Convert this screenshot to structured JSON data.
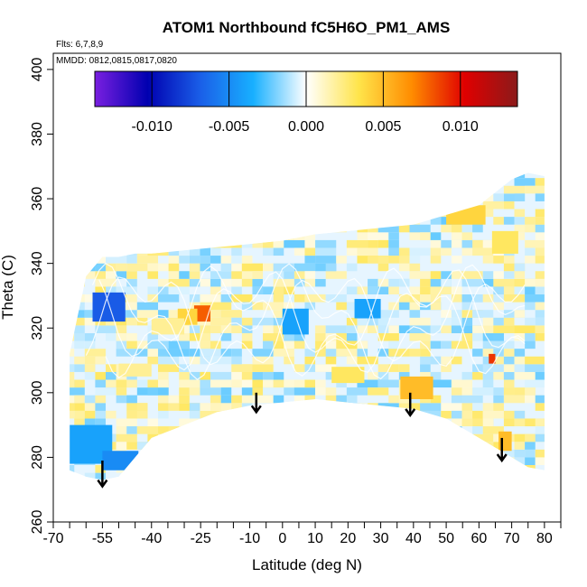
{
  "chart_data": {
    "type": "heatmap",
    "title": "ATOM1 Northbound fC5H6O_PM1_AMS",
    "flights_note": "Flts: 6,7,8,9",
    "dates_note": "MMDD: 0812,0815,0817,0820",
    "xlabel": "Latitude (deg N)",
    "ylabel": "Theta (C)",
    "xlim": [
      -70,
      85
    ],
    "ylim": [
      260,
      405
    ],
    "x_ticks": [
      "-70",
      "-55",
      "-40",
      "-25",
      "-10",
      "0",
      "10",
      "20",
      "30",
      "40",
      "50",
      "60",
      "70",
      "80"
    ],
    "x_tick_values": [
      -70,
      -55,
      -40,
      -25,
      -10,
      0,
      10,
      20,
      30,
      40,
      50,
      60,
      70,
      80
    ],
    "y_ticks": [
      "260",
      "280",
      "300",
      "320",
      "340",
      "360",
      "380",
      "400"
    ],
    "y_tick_values": [
      260,
      280,
      300,
      320,
      340,
      360,
      380,
      400
    ],
    "colorbar": {
      "min": -0.0137,
      "max": 0.0137,
      "ticks": [
        "-0.010",
        "-0.005",
        "0.000",
        "0.005",
        "0.010"
      ],
      "tick_values": [
        -0.01,
        -0.005,
        0.0,
        0.005,
        0.01
      ],
      "colors": [
        "#7a1fe0",
        "#0000b0",
        "#1a5fe8",
        "#18b0ff",
        "#ffffff",
        "#ffe44a",
        "#ff8c00",
        "#e00000",
        "#8b1a1a"
      ]
    },
    "data_envelope": {
      "lat": [
        -65,
        -60,
        -55,
        -50,
        -45,
        -40,
        -30,
        -20,
        -10,
        0,
        10,
        20,
        30,
        40,
        50,
        60,
        70,
        75,
        80
      ],
      "theta_bottom": [
        276,
        274,
        273,
        274,
        280,
        286,
        290,
        294,
        296,
        297,
        298,
        297,
        296,
        295,
        292,
        286,
        280,
        277,
        276
      ],
      "theta_top": [
        312,
        336,
        342,
        342,
        343,
        343,
        344,
        345,
        346,
        347,
        349,
        350,
        351,
        352,
        355,
        358,
        366,
        368,
        367
      ]
    },
    "features": [
      {
        "lat_min": -58,
        "lat_max": -48,
        "theta_min": 322,
        "theta_max": 331,
        "value": -0.007
      },
      {
        "lat_min": -65,
        "lat_max": -52,
        "theta_min": 278,
        "theta_max": 290,
        "value": -0.004
      },
      {
        "lat_min": -55,
        "lat_max": -44,
        "theta_min": 276,
        "theta_max": 282,
        "value": -0.005
      },
      {
        "lat_min": -27,
        "lat_max": -22,
        "theta_min": 322,
        "theta_max": 327,
        "value": 0.008
      },
      {
        "lat_min": -32,
        "lat_max": -26,
        "theta_min": 321,
        "theta_max": 326,
        "value": 0.004
      },
      {
        "lat_min": 0,
        "lat_max": 8,
        "theta_min": 318,
        "theta_max": 326,
        "value": -0.004
      },
      {
        "lat_min": 22,
        "lat_max": 30,
        "theta_min": 323,
        "theta_max": 329,
        "value": -0.004
      },
      {
        "lat_min": 36,
        "lat_max": 46,
        "theta_min": 298,
        "theta_max": 305,
        "value": 0.005
      },
      {
        "lat_min": 50,
        "lat_max": 62,
        "theta_min": 352,
        "theta_max": 358,
        "value": 0.004
      },
      {
        "lat_min": 64,
        "lat_max": 72,
        "theta_min": 343,
        "theta_max": 350,
        "value": 0.003
      },
      {
        "lat_min": 66,
        "lat_max": 70,
        "theta_min": 282,
        "theta_max": 288,
        "value": 0.005
      },
      {
        "lat_min": 63,
        "lat_max": 65,
        "theta_min": 309,
        "theta_max": 312,
        "value": 0.009
      },
      {
        "lat_min": -40,
        "lat_max": -30,
        "theta_min": 318,
        "theta_max": 323,
        "value": 0.002
      },
      {
        "lat_min": 15,
        "lat_max": 25,
        "theta_min": 303,
        "theta_max": 308,
        "value": 0.003
      },
      {
        "lat_min": -50,
        "lat_max": -40,
        "theta_min": 305,
        "theta_max": 309,
        "value": 0.002
      }
    ],
    "arrows": [
      {
        "lat": -55,
        "theta_from": 279,
        "theta_to": 271
      },
      {
        "lat": -8,
        "theta_from": 300,
        "theta_to": 294
      },
      {
        "lat": 39,
        "theta_from": 300,
        "theta_to": 293
      },
      {
        "lat": 67,
        "theta_from": 286,
        "theta_to": 279
      }
    ],
    "grid": false,
    "legend": "colorbar top"
  }
}
